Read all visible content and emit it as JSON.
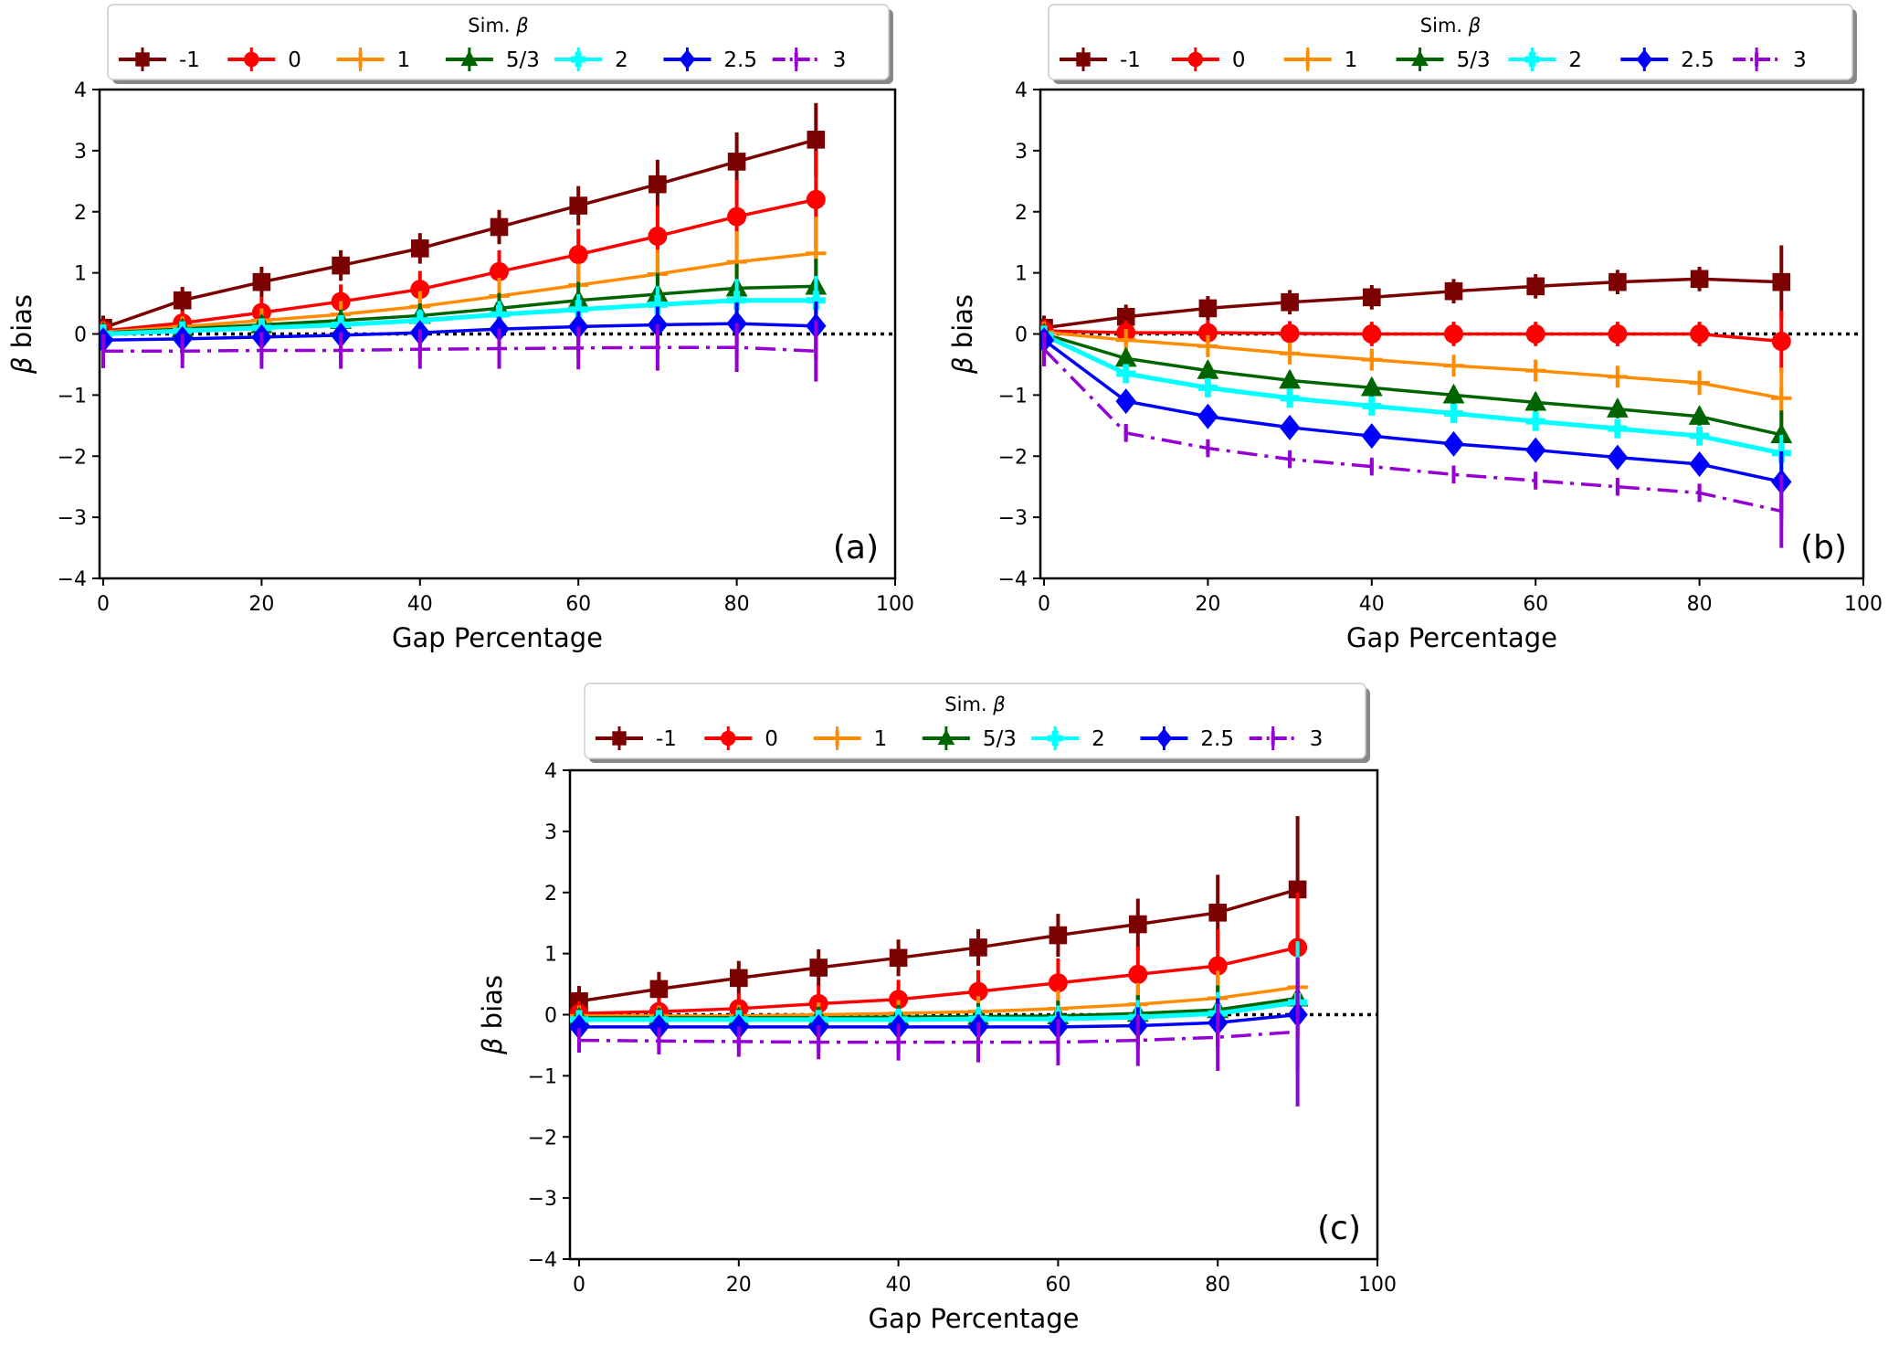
{
  "chart_data": [
    {
      "type": "line",
      "panel_label": "(a)",
      "title": "",
      "xlabel": "Gap Percentage",
      "ylabel": "β bias",
      "xlim": [
        -1,
        100
      ],
      "ylim": [
        -4,
        4
      ],
      "xticks": [
        0,
        20,
        40,
        60,
        80,
        100
      ],
      "yticks": [
        -4,
        -3,
        -2,
        -1,
        0,
        1,
        2,
        3,
        4
      ],
      "reference_line": 0,
      "legend": {
        "title": "Sim. β",
        "placement": "top-center",
        "ncol": 7
      },
      "x": [
        0,
        10,
        20,
        30,
        40,
        50,
        60,
        70,
        80,
        90
      ],
      "series": [
        {
          "name": "-1",
          "color": "#7b0000",
          "marker": "square",
          "dash": "solid",
          "values": [
            0.1,
            0.55,
            0.85,
            1.12,
            1.4,
            1.75,
            2.1,
            2.45,
            2.82,
            3.18
          ],
          "errors": [
            0.2,
            0.22,
            0.25,
            0.25,
            0.25,
            0.28,
            0.32,
            0.4,
            0.48,
            0.6
          ]
        },
        {
          "name": "0",
          "color": "#ff0000",
          "marker": "circle",
          "dash": "solid",
          "values": [
            0.05,
            0.18,
            0.35,
            0.53,
            0.73,
            1.02,
            1.3,
            1.6,
            1.92,
            2.2
          ],
          "errors": [
            0.18,
            0.2,
            0.25,
            0.28,
            0.3,
            0.35,
            0.42,
            0.5,
            0.6,
            0.8
          ]
        },
        {
          "name": "1",
          "color": "#ff8c00",
          "marker": "plus",
          "dash": "solid",
          "values": [
            0.03,
            0.12,
            0.22,
            0.32,
            0.45,
            0.62,
            0.8,
            0.98,
            1.18,
            1.32
          ],
          "errors": [
            0.15,
            0.15,
            0.2,
            0.22,
            0.25,
            0.3,
            0.35,
            0.4,
            0.5,
            0.6
          ]
        },
        {
          "name": "5/3",
          "color": "#006400",
          "marker": "triangle",
          "dash": "solid",
          "values": [
            0.02,
            0.08,
            0.15,
            0.22,
            0.3,
            0.42,
            0.55,
            0.65,
            0.75,
            0.78
          ],
          "errors": [
            0.12,
            0.12,
            0.15,
            0.18,
            0.2,
            0.25,
            0.3,
            0.35,
            0.4,
            0.45
          ]
        },
        {
          "name": "2",
          "color": "#00ffff",
          "marker": "plus-thick",
          "dash": "solid",
          "values": [
            0.0,
            0.05,
            0.1,
            0.15,
            0.22,
            0.32,
            0.4,
            0.48,
            0.55,
            0.55
          ],
          "errors": [
            0.1,
            0.1,
            0.12,
            0.15,
            0.18,
            0.22,
            0.25,
            0.3,
            0.35,
            0.4
          ]
        },
        {
          "name": "2.5",
          "color": "#0000ff",
          "marker": "diamond",
          "dash": "solid",
          "values": [
            -0.1,
            -0.08,
            -0.05,
            -0.02,
            0.02,
            0.08,
            0.12,
            0.15,
            0.17,
            0.13
          ],
          "errors": [
            0.1,
            0.1,
            0.12,
            0.14,
            0.16,
            0.2,
            0.25,
            0.3,
            0.35,
            0.4
          ]
        },
        {
          "name": "3",
          "color": "#9400d3",
          "marker": "vline",
          "dash": "dashdot",
          "values": [
            -0.28,
            -0.28,
            -0.27,
            -0.27,
            -0.25,
            -0.24,
            -0.23,
            -0.22,
            -0.22,
            -0.28
          ],
          "errors": [
            0.28,
            0.28,
            0.3,
            0.3,
            0.32,
            0.33,
            0.35,
            0.38,
            0.4,
            0.5
          ]
        }
      ]
    },
    {
      "type": "line",
      "panel_label": "(b)",
      "title": "",
      "xlabel": "Gap Percentage",
      "ylabel": "β bias",
      "xlim": [
        -1,
        100
      ],
      "ylim": [
        -4,
        4
      ],
      "xticks": [
        0,
        20,
        40,
        60,
        80,
        100
      ],
      "yticks": [
        -4,
        -3,
        -2,
        -1,
        0,
        1,
        2,
        3,
        4
      ],
      "reference_line": 0,
      "legend": {
        "title": "Sim. β",
        "placement": "top-center",
        "ncol": 7
      },
      "x": [
        0,
        10,
        20,
        30,
        40,
        50,
        60,
        70,
        80,
        90
      ],
      "series": [
        {
          "name": "-1",
          "color": "#7b0000",
          "marker": "square",
          "dash": "solid",
          "values": [
            0.1,
            0.28,
            0.42,
            0.52,
            0.6,
            0.7,
            0.78,
            0.85,
            0.9,
            0.85
          ],
          "errors": [
            0.2,
            0.2,
            0.2,
            0.2,
            0.2,
            0.2,
            0.2,
            0.2,
            0.2,
            0.6
          ]
        },
        {
          "name": "0",
          "color": "#ff0000",
          "marker": "circle",
          "dash": "solid",
          "values": [
            0.05,
            0.02,
            0.02,
            0.01,
            0.0,
            0.0,
            0.0,
            0.0,
            0.0,
            -0.12
          ],
          "errors": [
            0.18,
            0.2,
            0.2,
            0.2,
            0.2,
            0.2,
            0.2,
            0.2,
            0.2,
            0.5
          ]
        },
        {
          "name": "1",
          "color": "#ff8c00",
          "marker": "plus",
          "dash": "solid",
          "values": [
            0.03,
            -0.1,
            -0.2,
            -0.32,
            -0.42,
            -0.52,
            -0.6,
            -0.7,
            -0.8,
            -1.05
          ],
          "errors": [
            0.15,
            0.18,
            0.18,
            0.18,
            0.18,
            0.18,
            0.18,
            0.18,
            0.2,
            0.5
          ]
        },
        {
          "name": "5/3",
          "color": "#006400",
          "marker": "triangle",
          "dash": "solid",
          "values": [
            0.0,
            -0.4,
            -0.6,
            -0.76,
            -0.88,
            -1.0,
            -1.12,
            -1.23,
            -1.35,
            -1.65
          ],
          "errors": [
            0.12,
            0.15,
            0.15,
            0.15,
            0.15,
            0.15,
            0.15,
            0.15,
            0.15,
            0.4
          ]
        },
        {
          "name": "2",
          "color": "#00ffff",
          "marker": "plus-thick",
          "dash": "solid",
          "values": [
            -0.02,
            -0.65,
            -0.88,
            -1.05,
            -1.18,
            -1.3,
            -1.43,
            -1.55,
            -1.67,
            -1.95
          ],
          "errors": [
            0.1,
            0.12,
            0.12,
            0.12,
            0.12,
            0.12,
            0.12,
            0.12,
            0.12,
            0.3
          ]
        },
        {
          "name": "2.5",
          "color": "#0000ff",
          "marker": "diamond",
          "dash": "solid",
          "values": [
            -0.1,
            -1.1,
            -1.35,
            -1.53,
            -1.67,
            -1.8,
            -1.9,
            -2.02,
            -2.13,
            -2.42
          ],
          "errors": [
            0.1,
            0.1,
            0.1,
            0.1,
            0.1,
            0.1,
            0.1,
            0.1,
            0.1,
            0.5
          ]
        },
        {
          "name": "3",
          "color": "#9400d3",
          "marker": "vline",
          "dash": "dashdot",
          "values": [
            -0.25,
            -1.62,
            -1.87,
            -2.05,
            -2.17,
            -2.3,
            -2.4,
            -2.5,
            -2.6,
            -2.9
          ],
          "errors": [
            0.28,
            0.12,
            0.1,
            0.1,
            0.1,
            0.1,
            0.12,
            0.12,
            0.15,
            0.6
          ]
        }
      ]
    },
    {
      "type": "line",
      "panel_label": "(c)",
      "title": "",
      "xlabel": "Gap Percentage",
      "ylabel": "β bias",
      "xlim": [
        -1,
        100
      ],
      "ylim": [
        -4,
        4
      ],
      "xticks": [
        0,
        20,
        40,
        60,
        80,
        100
      ],
      "yticks": [
        -4,
        -3,
        -2,
        -1,
        0,
        1,
        2,
        3,
        4
      ],
      "reference_line": 0,
      "legend": {
        "title": "Sim. β",
        "placement": "top-center",
        "ncol": 7
      },
      "x": [
        0,
        10,
        20,
        30,
        40,
        50,
        60,
        70,
        80,
        90
      ],
      "series": [
        {
          "name": "-1",
          "color": "#7b0000",
          "marker": "square",
          "dash": "solid",
          "values": [
            0.22,
            0.42,
            0.6,
            0.77,
            0.93,
            1.1,
            1.3,
            1.48,
            1.67,
            2.05
          ],
          "errors": [
            0.25,
            0.28,
            0.28,
            0.3,
            0.3,
            0.3,
            0.35,
            0.42,
            0.62,
            1.2
          ]
        },
        {
          "name": "0",
          "color": "#ff0000",
          "marker": "circle",
          "dash": "solid",
          "values": [
            0.02,
            0.05,
            0.1,
            0.18,
            0.25,
            0.38,
            0.52,
            0.66,
            0.8,
            1.1
          ],
          "errors": [
            0.2,
            0.22,
            0.25,
            0.3,
            0.32,
            0.35,
            0.4,
            0.45,
            0.6,
            0.9
          ]
        },
        {
          "name": "1",
          "color": "#ff8c00",
          "marker": "plus",
          "dash": "solid",
          "values": [
            -0.02,
            -0.02,
            -0.02,
            0.0,
            0.02,
            0.05,
            0.1,
            0.17,
            0.27,
            0.45
          ],
          "errors": [
            0.15,
            0.15,
            0.18,
            0.2,
            0.22,
            0.25,
            0.3,
            0.35,
            0.45,
            0.7
          ]
        },
        {
          "name": "5/3",
          "color": "#006400",
          "marker": "triangle",
          "dash": "solid",
          "values": [
            -0.05,
            -0.05,
            -0.05,
            -0.05,
            -0.04,
            -0.03,
            -0.02,
            0.02,
            0.08,
            0.27
          ],
          "errors": [
            0.12,
            0.12,
            0.15,
            0.18,
            0.2,
            0.22,
            0.25,
            0.3,
            0.4,
            0.6
          ]
        },
        {
          "name": "2",
          "color": "#00ffff",
          "marker": "plus-thick",
          "dash": "solid",
          "values": [
            -0.08,
            -0.08,
            -0.08,
            -0.08,
            -0.08,
            -0.07,
            -0.07,
            -0.04,
            0.02,
            0.2
          ],
          "errors": [
            0.1,
            0.1,
            0.12,
            0.15,
            0.18,
            0.2,
            0.22,
            0.28,
            0.35,
            1.0
          ]
        },
        {
          "name": "2.5",
          "color": "#0000ff",
          "marker": "diamond",
          "dash": "solid",
          "values": [
            -0.2,
            -0.2,
            -0.2,
            -0.2,
            -0.2,
            -0.2,
            -0.2,
            -0.18,
            -0.13,
            0.0
          ],
          "errors": [
            0.1,
            0.1,
            0.12,
            0.14,
            0.16,
            0.2,
            0.25,
            0.3,
            0.4,
            0.9
          ]
        },
        {
          "name": "3",
          "color": "#9400d3",
          "marker": "vline",
          "dash": "dashdot",
          "values": [
            -0.42,
            -0.43,
            -0.44,
            -0.45,
            -0.45,
            -0.45,
            -0.45,
            -0.42,
            -0.37,
            -0.28
          ],
          "errors": [
            0.2,
            0.22,
            0.25,
            0.28,
            0.3,
            0.33,
            0.38,
            0.42,
            0.55,
            1.22
          ]
        }
      ]
    }
  ]
}
